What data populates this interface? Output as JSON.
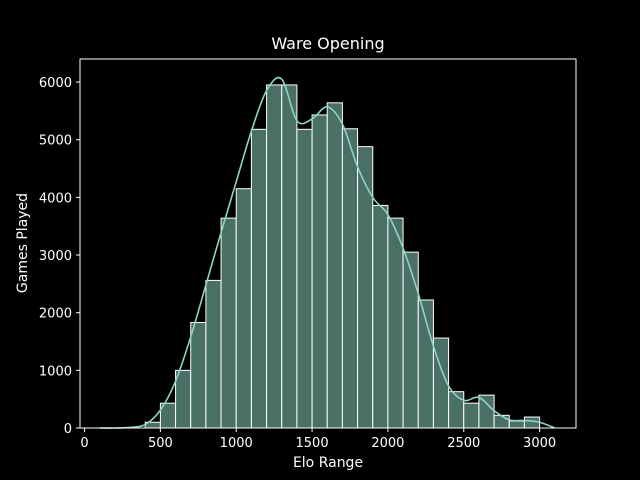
{
  "chart_data": {
    "type": "bar",
    "title": "Ware Opening",
    "xlabel": "Elo Range",
    "ylabel": "Games Played",
    "xlim": [
      -30,
      3240
    ],
    "ylim": [
      0,
      6400
    ],
    "xticks": [
      0,
      500,
      1000,
      1500,
      2000,
      2500,
      3000
    ],
    "yticks": [
      0,
      1000,
      2000,
      3000,
      4000,
      5000,
      6000
    ],
    "xtick_labels": [
      "0",
      "500",
      "1000",
      "1500",
      "2000",
      "2500",
      "3000"
    ],
    "ytick_labels": [
      "0",
      "1000",
      "2000",
      "3000",
      "4000",
      "5000",
      "6000"
    ],
    "bin_width": 100,
    "bins": [
      {
        "x0": 100,
        "value": 0
      },
      {
        "x0": 200,
        "value": 0
      },
      {
        "x0": 300,
        "value": 0
      },
      {
        "x0": 400,
        "value": 100
      },
      {
        "x0": 500,
        "value": 430
      },
      {
        "x0": 600,
        "value": 1000
      },
      {
        "x0": 700,
        "value": 1830
      },
      {
        "x0": 800,
        "value": 2560
      },
      {
        "x0": 900,
        "value": 3640
      },
      {
        "x0": 1000,
        "value": 4150
      },
      {
        "x0": 1100,
        "value": 5180
      },
      {
        "x0": 1200,
        "value": 5950
      },
      {
        "x0": 1300,
        "value": 5950
      },
      {
        "x0": 1400,
        "value": 5180
      },
      {
        "x0": 1500,
        "value": 5430
      },
      {
        "x0": 1600,
        "value": 5640
      },
      {
        "x0": 1700,
        "value": 5190
      },
      {
        "x0": 1800,
        "value": 4880
      },
      {
        "x0": 1900,
        "value": 3860
      },
      {
        "x0": 2000,
        "value": 3640
      },
      {
        "x0": 2100,
        "value": 3050
      },
      {
        "x0": 2200,
        "value": 2220
      },
      {
        "x0": 2300,
        "value": 1560
      },
      {
        "x0": 2400,
        "value": 630
      },
      {
        "x0": 2500,
        "value": 430
      },
      {
        "x0": 2600,
        "value": 570
      },
      {
        "x0": 2700,
        "value": 220
      },
      {
        "x0": 2800,
        "value": 120
      },
      {
        "x0": 2900,
        "value": 190
      }
    ],
    "kde_curve": {
      "x": [
        100,
        200,
        300,
        400,
        500,
        600,
        700,
        800,
        900,
        1000,
        1100,
        1200,
        1300,
        1400,
        1500,
        1600,
        1700,
        1800,
        1900,
        2000,
        2100,
        2200,
        2300,
        2400,
        2500,
        2600,
        2700,
        2800,
        2900,
        3000,
        3100
      ],
      "y": [
        0,
        0,
        10,
        60,
        310,
        810,
        1580,
        2480,
        3390,
        4270,
        5150,
        5850,
        6050,
        5330,
        5360,
        5570,
        5270,
        4530,
        4000,
        3700,
        3120,
        2330,
        1420,
        730,
        480,
        530,
        300,
        140,
        130,
        100,
        0
      ]
    },
    "colors": {
      "bar_fill": "#4a7066",
      "bar_edge": "#ffffff",
      "kde_line": "#8dd3c7",
      "axes": "#ffffff",
      "background": "#000000"
    }
  }
}
